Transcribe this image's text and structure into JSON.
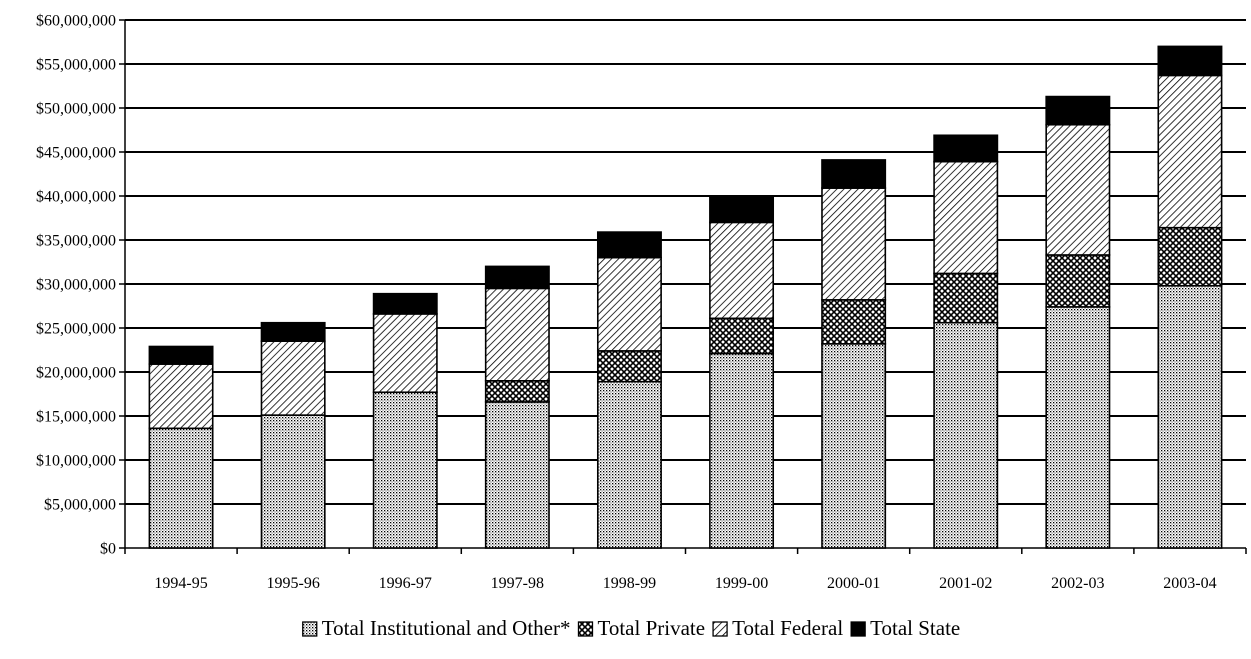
{
  "chart_data": {
    "type": "bar",
    "stacked": true,
    "categories": [
      "1994-95",
      "1995-96",
      "1996-97",
      "1997-98",
      "1998-99",
      "1999-00",
      "2000-01",
      "2001-02",
      "2002-03",
      "2003-04"
    ],
    "series": [
      {
        "name": "Total Institutional and Other*",
        "pattern": "dots",
        "values": [
          13600000,
          15100000,
          17700000,
          16600000,
          18900000,
          22100000,
          23200000,
          25600000,
          27400000,
          29800000
        ]
      },
      {
        "name": "Total Private",
        "pattern": "crosshatch",
        "values": [
          0,
          0,
          0,
          2400000,
          3500000,
          4000000,
          5000000,
          5600000,
          5900000,
          6600000
        ]
      },
      {
        "name": "Total Federal",
        "pattern": "diagonal",
        "values": [
          7300000,
          8400000,
          8900000,
          10500000,
          10600000,
          10900000,
          12700000,
          12700000,
          14800000,
          17300000
        ]
      },
      {
        "name": "Total State",
        "pattern": "solid",
        "values": [
          2000000,
          2100000,
          2300000,
          2500000,
          2900000,
          3000000,
          3200000,
          3000000,
          3200000,
          3300000
        ]
      }
    ],
    "title": "",
    "xlabel": "",
    "ylabel": "",
    "ylim": [
      0,
      60000000
    ],
    "ytick_step": 5000000,
    "ytick_labels": [
      "$0",
      "$5,000,000",
      "$10,000,000",
      "$15,000,000",
      "$20,000,000",
      "$25,000,000",
      "$30,000,000",
      "$35,000,000",
      "$40,000,000",
      "$45,000,000",
      "$50,000,000",
      "$55,000,000",
      "$60,000,000"
    ],
    "grid": "horizontal",
    "legend_position": "bottom",
    "colors": {
      "bar_fill": "#ffffff",
      "ink": "#000000"
    }
  }
}
